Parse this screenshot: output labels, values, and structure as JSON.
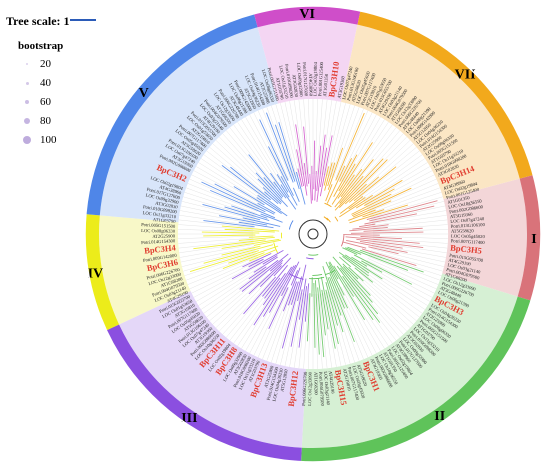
{
  "legend": {
    "tree_scale_label": "Tree scale: 1",
    "bootstrap_title": "bootstrap",
    "bootstrap_values": [
      "20",
      "40",
      "60",
      "80",
      "100"
    ],
    "bootstrap_color": "#b7a3d9"
  },
  "clades": [
    {
      "label": "I",
      "color": "#d9737a",
      "inner": "#f3d6d8",
      "start": 75,
      "end": 107
    },
    {
      "label": "II",
      "color": "#5fc35a",
      "inner": "#d6f0d4",
      "start": 107,
      "end": 183
    },
    {
      "label": "III",
      "color": "#8b4fe0",
      "inner": "#e4d7f8",
      "start": 183,
      "end": 245
    },
    {
      "label": "IV",
      "color": "#ecec1a",
      "inner": "#f8f8c8",
      "start": 245,
      "end": 275
    },
    {
      "label": "V",
      "color": "#4f86e8",
      "inner": "#d8e5fa",
      "start": 275,
      "end": 345
    },
    {
      "label": "VI",
      "color": "#cf4ec9",
      "inner": "#f4d6f3",
      "start": 345,
      "end": 12
    },
    {
      "label": "VII",
      "color": "#f2a91c",
      "inner": "#fbe6c4",
      "start": 12,
      "end": 75
    }
  ],
  "highlighted_genes": [
    {
      "label": "BpC3H10",
      "angle": 8
    },
    {
      "label": "BpC3H14",
      "angle": 68
    },
    {
      "label": "BpC3H5",
      "angle": 96
    },
    {
      "label": "BpC3H3",
      "angle": 118
    },
    {
      "label": "BpC3H1",
      "angle": 158
    },
    {
      "label": "BpC3H15",
      "angle": 170
    },
    {
      "label": "BpC3H12",
      "angle": 187
    },
    {
      "label": "BpC3H13",
      "angle": 200
    },
    {
      "label": "BpC3H8",
      "angle": 214
    },
    {
      "label": "BpC3H11",
      "angle": 220
    },
    {
      "label": "BpC3H6",
      "angle": 258
    },
    {
      "label": "BpC3H4",
      "angle": 264
    },
    {
      "label": "BpC3H2",
      "angle": 293
    }
  ],
  "gene_ids": [
    "LOC Os02g19804",
    "Potri.001G125400",
    "AT1G01350",
    "LOC Os10g36550",
    "Potri.002G086600",
    "AT3G19360",
    "LOC Os07g47240",
    "Potri.013G106100",
    "AT5G58620",
    "LOC Os05g45020",
    "Potri.007G117400",
    "AT2G19810",
    "LOC Os01g53650",
    "Potri.015G055700",
    "AT4G29190",
    "LOC Os03g21140",
    "Potri.004G079500",
    "AT1G68200",
    "LOC Os12g33090",
    "Potri.006G226700",
    "AT3G48440",
    "LOC Os06g21390",
    "Potri.009G142000",
    "AT5G12850",
    "LOC Os04g36230",
    "Potri.014G154300",
    "AT2G25900",
    "LOC Os08g06330",
    "Potri.005G151500",
    "AT1G03790",
    "LOC Os11g33210",
    "Potri.010G098200",
    "AT3G02830",
    "LOC Os09g32900",
    "Potri.017G127600",
    "AT4G38960"
  ]
}
